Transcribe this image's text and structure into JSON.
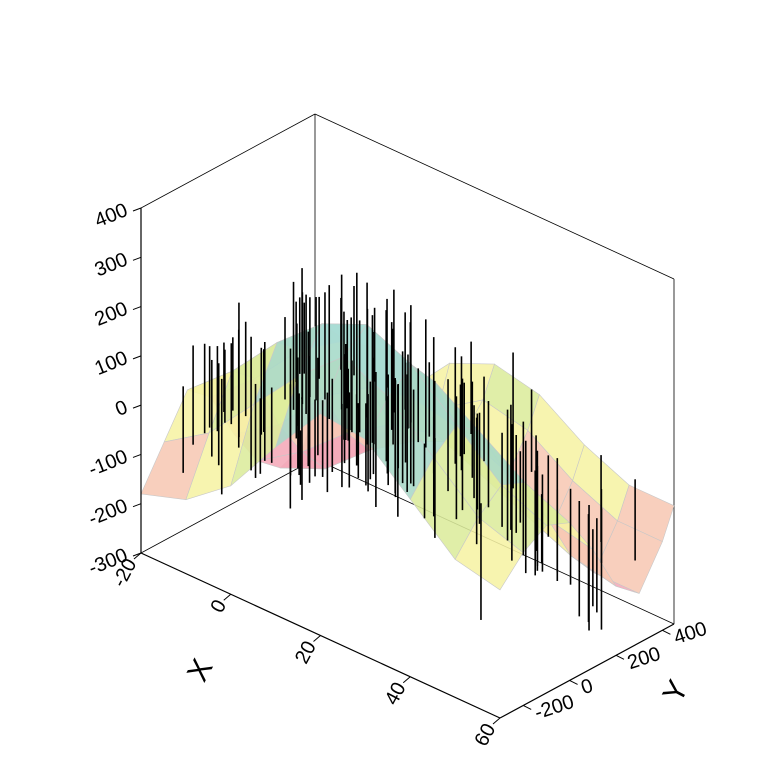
{
  "chart_data": {
    "type": "surface3d",
    "title": "",
    "x_axis": {
      "label": "X",
      "range": [
        -20,
        60
      ],
      "ticks": [
        -20,
        0,
        20,
        40,
        60
      ]
    },
    "y_axis": {
      "label": "Y",
      "range": [
        -300,
        450
      ],
      "ticks": [
        -200,
        0,
        200,
        400
      ]
    },
    "z_axis": {
      "label": "",
      "range": [
        -300,
        400
      ],
      "ticks": [
        -300,
        -200,
        -100,
        0,
        100,
        200,
        300,
        400
      ]
    },
    "surface": {
      "x": [
        -20,
        -10,
        0,
        10,
        20,
        30,
        40,
        50,
        60
      ],
      "y": [
        -300,
        -200,
        -100,
        0,
        100,
        200,
        300,
        400,
        450
      ],
      "z": [
        [
          -180,
          -150,
          -80,
          40,
          150,
          140,
          60,
          -20,
          -40
        ],
        [
          -100,
          -40,
          60,
          160,
          240,
          200,
          120,
          40,
          10
        ],
        [
          -20,
          60,
          160,
          240,
          280,
          240,
          160,
          80,
          40
        ],
        [
          -60,
          20,
          120,
          180,
          200,
          180,
          120,
          60,
          20
        ],
        [
          -160,
          -100,
          0,
          60,
          80,
          60,
          20,
          -40,
          -60
        ],
        [
          -240,
          -180,
          -100,
          -40,
          -20,
          -60,
          -100,
          -140,
          -160
        ],
        [
          -280,
          -240,
          -160,
          -100,
          -60,
          -100,
          -160,
          -200,
          -200
        ],
        [
          -260,
          -220,
          -140,
          -60,
          0,
          -20,
          -80,
          -120,
          -120
        ],
        [
          -200,
          -160,
          -80,
          20,
          60,
          40,
          -20,
          -60,
          -60
        ]
      ],
      "colors": [
        "#f5a9b8",
        "#f7c8b4",
        "#f6f2a4",
        "#dcec9c",
        "#a8d8c8",
        "#a8dcd4"
      ]
    },
    "drop_lines": {
      "count": 150,
      "style": "vertical black lines through surface"
    },
    "grid": false,
    "legend": "none"
  }
}
